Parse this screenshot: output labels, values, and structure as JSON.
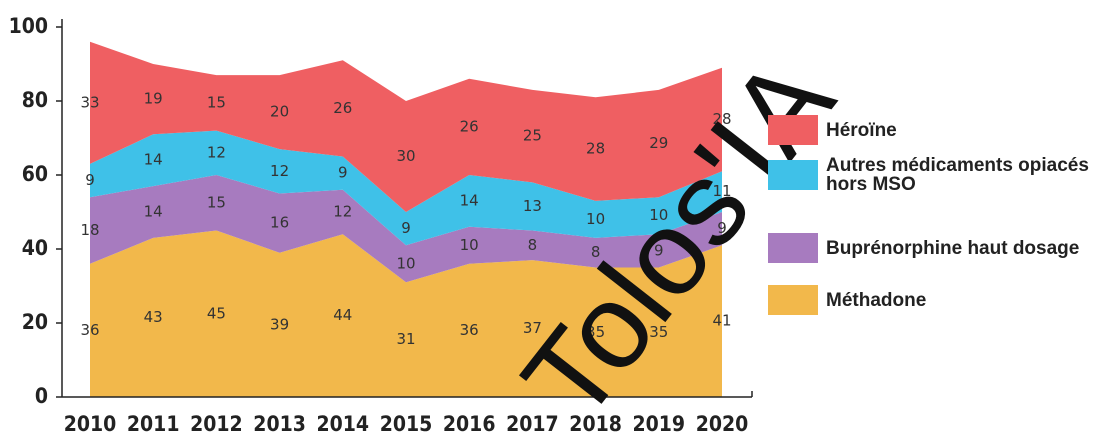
{
  "chart_data": {
    "type": "stacked-area",
    "categories": [
      "2010",
      "2011",
      "2012",
      "2013",
      "2014",
      "2015",
      "2016",
      "2017",
      "2018",
      "2019",
      "2020"
    ],
    "series": [
      {
        "name": "Méthadone",
        "color": "#f2b84b",
        "values": [
          36,
          43,
          45,
          39,
          44,
          31,
          36,
          37,
          35,
          35,
          41
        ]
      },
      {
        "name": "Buprénorphine haut dosage",
        "color": "#a77bbf",
        "values": [
          18,
          14,
          15,
          16,
          12,
          10,
          10,
          8,
          8,
          9,
          9
        ]
      },
      {
        "name": "Autres médicaments opiacés hors MSO",
        "color": "#3fc1e8",
        "values": [
          9,
          14,
          12,
          12,
          9,
          9,
          14,
          13,
          10,
          10,
          11
        ]
      },
      {
        "name": "Héroïne",
        "color": "#ef5f62",
        "values": [
          33,
          19,
          15,
          20,
          26,
          30,
          26,
          25,
          28,
          29,
          28
        ]
      }
    ],
    "ylim": [
      0,
      100
    ],
    "yticks": [
      0,
      20,
      40,
      60,
      80,
      100
    ],
    "legend": "right",
    "watermark": "Tolos'IA"
  }
}
